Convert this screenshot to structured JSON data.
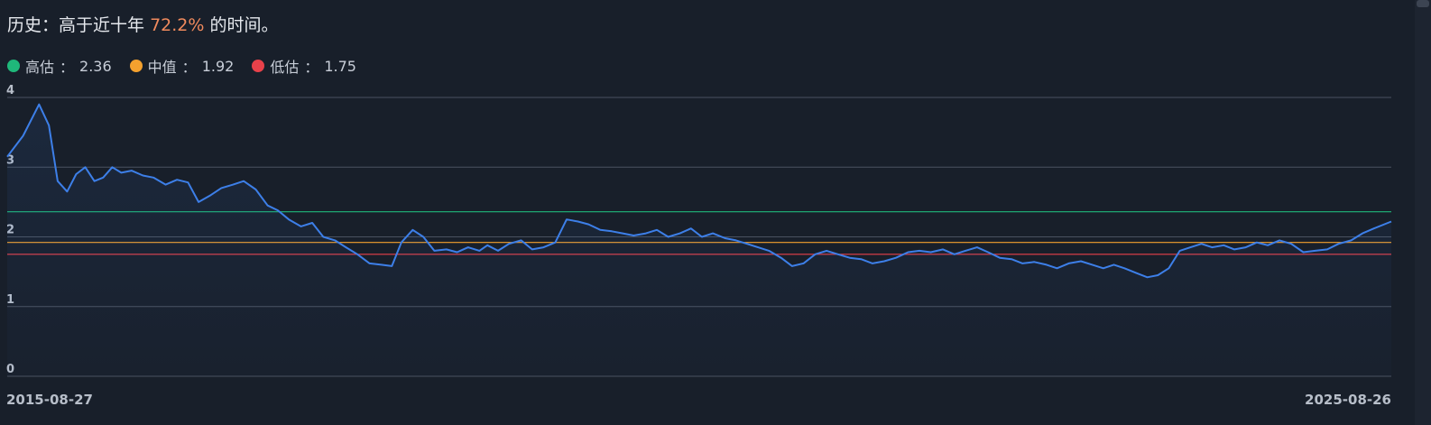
{
  "headline": {
    "prefix": "历史：高于近十年",
    "percent": "72.2%",
    "suffix": "的时间。"
  },
  "legend": [
    {
      "name": "高估",
      "sep": "：",
      "value": "2.36",
      "color": "#1fb87a"
    },
    {
      "name": "中值",
      "sep": "：",
      "value": "1.92",
      "color": "#f4a12e"
    },
    {
      "name": "低估",
      "sep": "：",
      "value": "1.75",
      "color": "#e8414a"
    }
  ],
  "chart_data": {
    "type": "line",
    "x_start": "2015-08-27",
    "x_end": "2025-08-26",
    "x_tick_labels": [
      "2015-08-27",
      "2025-08-26"
    ],
    "y_ticks": [
      0,
      1,
      2,
      3,
      4
    ],
    "ylim": [
      0,
      4
    ],
    "grid": true,
    "reference_lines": [
      {
        "label": "高估",
        "value": 2.36,
        "color": "#1fb87a"
      },
      {
        "label": "中值",
        "value": 1.92,
        "color": "#f4a12e"
      },
      {
        "label": "低估",
        "value": 1.75,
        "color": "#e8414a"
      }
    ],
    "series": [
      {
        "color": "#3d7fe8",
        "x": [
          "2015-08-27",
          "2015-10-08",
          "2015-11-19",
          "2015-12-15",
          "2016-01-07",
          "2016-02-01",
          "2016-02-25",
          "2016-03-20",
          "2016-04-13",
          "2016-05-06",
          "2016-05-30",
          "2016-06-23",
          "2016-07-20",
          "2016-08-19",
          "2016-09-16",
          "2016-10-18",
          "2016-11-17",
          "2016-12-16",
          "2017-01-13",
          "2017-02-14",
          "2017-03-14",
          "2017-04-14",
          "2017-05-12",
          "2017-06-13",
          "2017-07-14",
          "2017-08-10",
          "2017-09-08",
          "2017-10-10",
          "2017-11-09",
          "2017-12-08",
          "2018-01-08",
          "2018-02-06",
          "2018-03-08",
          "2018-04-09",
          "2018-05-10",
          "2018-06-07",
          "2018-07-02",
          "2018-08-01",
          "2018-08-29",
          "2018-09-27",
          "2018-10-29",
          "2018-11-26",
          "2018-12-25",
          "2019-01-24",
          "2019-02-14",
          "2019-03-14",
          "2019-04-12",
          "2019-05-14",
          "2019-06-12",
          "2019-07-12",
          "2019-08-12",
          "2019-09-11",
          "2019-10-11",
          "2019-11-08",
          "2019-12-09",
          "2020-01-08",
          "2020-02-06",
          "2020-03-06",
          "2020-04-07",
          "2020-05-06",
          "2020-06-05",
          "2020-07-06",
          "2020-08-04",
          "2020-09-02",
          "2020-10-01",
          "2020-11-02",
          "2020-12-01",
          "2020-12-30",
          "2021-01-28",
          "2021-02-26",
          "2021-03-30",
          "2021-04-28",
          "2021-05-28",
          "2021-06-28",
          "2021-07-28",
          "2021-08-27",
          "2021-09-27",
          "2021-10-27",
          "2021-11-26",
          "2021-12-27",
          "2022-01-27",
          "2022-02-28",
          "2022-03-30",
          "2022-04-29",
          "2022-05-31",
          "2022-06-30",
          "2022-07-29",
          "2022-08-29",
          "2022-09-27",
          "2022-10-28",
          "2022-11-28",
          "2022-12-27",
          "2023-01-27",
          "2023-02-28",
          "2023-03-28",
          "2023-04-28",
          "2023-05-30",
          "2023-06-29",
          "2023-07-28",
          "2023-08-25",
          "2023-09-22",
          "2023-10-24",
          "2023-11-21",
          "2023-12-19",
          "2024-01-17",
          "2024-02-15",
          "2024-03-14",
          "2024-04-12",
          "2024-05-10",
          "2024-06-10",
          "2024-07-08",
          "2024-08-07",
          "2024-09-05",
          "2024-10-04",
          "2024-11-04",
          "2024-12-05",
          "2025-01-06",
          "2025-02-06",
          "2025-03-10",
          "2025-04-09",
          "2025-05-12",
          "2025-06-11",
          "2025-07-11",
          "2025-08-26"
        ],
        "y": [
          3.15,
          3.45,
          3.9,
          3.6,
          2.8,
          2.65,
          2.9,
          3.0,
          2.8,
          2.85,
          3.0,
          2.92,
          2.95,
          2.88,
          2.85,
          2.75,
          2.82,
          2.78,
          2.5,
          2.6,
          2.7,
          2.75,
          2.8,
          2.68,
          2.45,
          2.38,
          2.25,
          2.15,
          2.2,
          2.0,
          1.95,
          1.85,
          1.75,
          1.62,
          1.6,
          1.58,
          1.92,
          2.1,
          2.0,
          1.8,
          1.82,
          1.78,
          1.85,
          1.8,
          1.88,
          1.8,
          1.9,
          1.95,
          1.82,
          1.85,
          1.92,
          2.25,
          2.22,
          2.18,
          2.1,
          2.08,
          2.05,
          2.02,
          2.05,
          2.1,
          2.0,
          2.05,
          2.12,
          2.0,
          2.05,
          1.98,
          1.95,
          1.9,
          1.85,
          1.8,
          1.7,
          1.58,
          1.62,
          1.75,
          1.8,
          1.75,
          1.7,
          1.68,
          1.62,
          1.65,
          1.7,
          1.78,
          1.8,
          1.78,
          1.82,
          1.75,
          1.8,
          1.85,
          1.78,
          1.7,
          1.68,
          1.62,
          1.64,
          1.6,
          1.55,
          1.62,
          1.65,
          1.6,
          1.55,
          1.6,
          1.55,
          1.48,
          1.42,
          1.45,
          1.55,
          1.8,
          1.85,
          1.9,
          1.85,
          1.88,
          1.82,
          1.85,
          1.92,
          1.88,
          1.95,
          1.9,
          1.78,
          1.8,
          1.82,
          1.9,
          1.95,
          2.05,
          2.12,
          2.22
        ]
      }
    ]
  }
}
